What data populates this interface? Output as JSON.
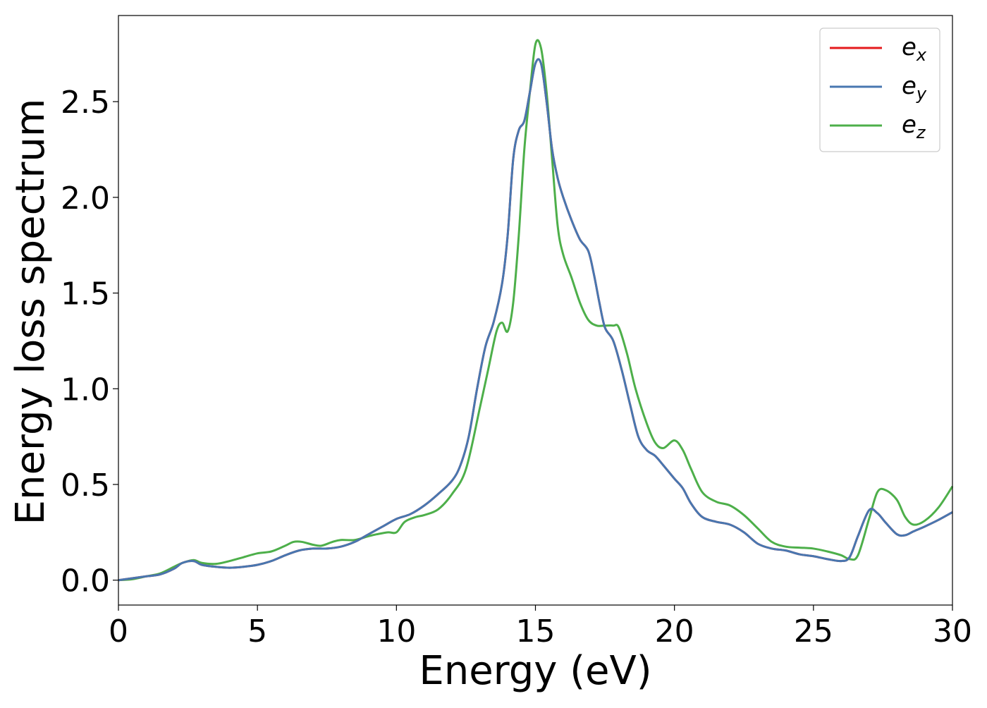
{
  "chart_data": {
    "type": "line",
    "xlabel": "Energy (eV)",
    "ylabel": "Energy loss spectrum",
    "xlim": [
      0,
      30
    ],
    "ylim": [
      -0.13,
      2.95
    ],
    "xticks": [
      0,
      5,
      10,
      15,
      20,
      25,
      30
    ],
    "xtick_labels": [
      "0",
      "5",
      "10",
      "15",
      "20",
      "25",
      "30"
    ],
    "yticks": [
      0.0,
      0.5,
      1.0,
      1.5,
      2.0,
      2.5
    ],
    "ytick_labels": [
      "0.0",
      "0.5",
      "1.0",
      "1.5",
      "2.0",
      "2.5"
    ],
    "grid": false,
    "legend_position": "top-right",
    "series": [
      {
        "name": "e_x",
        "label_base": "e",
        "label_sub": "x",
        "color": "#e41a1c",
        "x": [
          0,
          0.5,
          1,
          1.5,
          2,
          2.3,
          2.7,
          3,
          3.5,
          4,
          4.5,
          5,
          5.5,
          6,
          6.5,
          7,
          7.5,
          8,
          8.5,
          9,
          9.5,
          10,
          10.5,
          11,
          11.5,
          12,
          12.3,
          12.6,
          12.9,
          13.2,
          13.5,
          13.8,
          14,
          14.2,
          14.4,
          14.6,
          14.8,
          15,
          15.2,
          15.4,
          15.6,
          15.8,
          16,
          16.3,
          16.6,
          16.9,
          17.1,
          17.3,
          17.5,
          17.8,
          18.1,
          18.4,
          18.7,
          19,
          19.3,
          19.6,
          20,
          20.3,
          20.6,
          21,
          21.5,
          22,
          22.5,
          23,
          23.5,
          24,
          24.5,
          25,
          25.5,
          26,
          26.3,
          26.6,
          27,
          27.3,
          27.6,
          28,
          28.3,
          28.6,
          29,
          29.5,
          30
        ],
        "y": [
          0,
          0.01,
          0.02,
          0.03,
          0.06,
          0.09,
          0.1,
          0.08,
          0.07,
          0.065,
          0.07,
          0.08,
          0.1,
          0.13,
          0.155,
          0.165,
          0.165,
          0.175,
          0.2,
          0.24,
          0.28,
          0.32,
          0.345,
          0.39,
          0.45,
          0.52,
          0.6,
          0.75,
          1.0,
          1.22,
          1.35,
          1.55,
          1.8,
          2.2,
          2.35,
          2.4,
          2.55,
          2.7,
          2.7,
          2.5,
          2.25,
          2.1,
          2.0,
          1.88,
          1.78,
          1.72,
          1.6,
          1.45,
          1.32,
          1.25,
          1.1,
          0.92,
          0.75,
          0.68,
          0.65,
          0.6,
          0.53,
          0.48,
          0.4,
          0.33,
          0.305,
          0.29,
          0.25,
          0.19,
          0.165,
          0.155,
          0.135,
          0.125,
          0.11,
          0.1,
          0.12,
          0.23,
          0.365,
          0.35,
          0.3,
          0.24,
          0.235,
          0.255,
          0.28,
          0.315,
          0.355
        ]
      },
      {
        "name": "e_y",
        "label_base": "e",
        "label_sub": "y",
        "color": "#4877b0",
        "x": [
          0,
          0.5,
          1,
          1.5,
          2,
          2.3,
          2.7,
          3,
          3.5,
          4,
          4.5,
          5,
          5.5,
          6,
          6.5,
          7,
          7.5,
          8,
          8.5,
          9,
          9.5,
          10,
          10.5,
          11,
          11.5,
          12,
          12.3,
          12.6,
          12.9,
          13.2,
          13.5,
          13.8,
          14,
          14.2,
          14.4,
          14.6,
          14.8,
          15,
          15.2,
          15.4,
          15.6,
          15.8,
          16,
          16.3,
          16.6,
          16.9,
          17.1,
          17.3,
          17.5,
          17.8,
          18.1,
          18.4,
          18.7,
          19,
          19.3,
          19.6,
          20,
          20.3,
          20.6,
          21,
          21.5,
          22,
          22.5,
          23,
          23.5,
          24,
          24.5,
          25,
          25.5,
          26,
          26.3,
          26.6,
          27,
          27.3,
          27.6,
          28,
          28.3,
          28.6,
          29,
          29.5,
          30
        ],
        "y": [
          0,
          0.01,
          0.02,
          0.03,
          0.06,
          0.09,
          0.1,
          0.08,
          0.07,
          0.065,
          0.07,
          0.08,
          0.1,
          0.13,
          0.155,
          0.165,
          0.165,
          0.175,
          0.2,
          0.24,
          0.28,
          0.32,
          0.345,
          0.39,
          0.45,
          0.52,
          0.6,
          0.75,
          1.0,
          1.22,
          1.35,
          1.55,
          1.8,
          2.2,
          2.35,
          2.4,
          2.55,
          2.7,
          2.7,
          2.5,
          2.25,
          2.1,
          2.0,
          1.88,
          1.78,
          1.72,
          1.6,
          1.45,
          1.32,
          1.25,
          1.1,
          0.92,
          0.75,
          0.68,
          0.65,
          0.6,
          0.53,
          0.48,
          0.4,
          0.33,
          0.305,
          0.29,
          0.25,
          0.19,
          0.165,
          0.155,
          0.135,
          0.125,
          0.11,
          0.1,
          0.12,
          0.23,
          0.365,
          0.35,
          0.3,
          0.24,
          0.235,
          0.255,
          0.28,
          0.315,
          0.355
        ]
      },
      {
        "name": "e_z",
        "label_base": "e",
        "label_sub": "z",
        "color": "#4daf4a",
        "x": [
          0,
          0.5,
          1,
          1.5,
          2,
          2.3,
          2.7,
          3,
          3.5,
          4,
          4.5,
          5,
          5.5,
          6,
          6.3,
          6.6,
          7,
          7.3,
          7.7,
          8,
          8.5,
          9,
          9.3,
          9.7,
          10,
          10.3,
          10.7,
          11,
          11.5,
          12,
          12.5,
          13,
          13.3,
          13.6,
          13.8,
          14,
          14.2,
          14.4,
          14.6,
          14.8,
          15,
          15.2,
          15.4,
          15.6,
          15.8,
          16,
          16.3,
          16.6,
          16.9,
          17.2,
          17.5,
          17.8,
          18,
          18.3,
          18.6,
          19,
          19.3,
          19.6,
          20,
          20.3,
          20.6,
          21,
          21.5,
          22,
          22.5,
          23,
          23.5,
          24,
          24.5,
          25,
          25.5,
          26,
          26.3,
          26.6,
          27,
          27.3,
          27.6,
          28,
          28.3,
          28.6,
          29,
          29.5,
          30
        ],
        "y": [
          0,
          0.005,
          0.02,
          0.035,
          0.07,
          0.09,
          0.105,
          0.09,
          0.085,
          0.1,
          0.12,
          0.14,
          0.15,
          0.18,
          0.2,
          0.2,
          0.185,
          0.18,
          0.2,
          0.21,
          0.21,
          0.23,
          0.24,
          0.25,
          0.25,
          0.305,
          0.33,
          0.34,
          0.37,
          0.45,
          0.58,
          0.9,
          1.1,
          1.3,
          1.345,
          1.3,
          1.45,
          1.8,
          2.25,
          2.55,
          2.8,
          2.78,
          2.55,
          2.2,
          1.85,
          1.7,
          1.58,
          1.45,
          1.36,
          1.33,
          1.33,
          1.33,
          1.32,
          1.18,
          1.0,
          0.82,
          0.72,
          0.69,
          0.73,
          0.68,
          0.58,
          0.46,
          0.41,
          0.39,
          0.34,
          0.27,
          0.2,
          0.175,
          0.17,
          0.165,
          0.15,
          0.13,
          0.11,
          0.13,
          0.32,
          0.46,
          0.47,
          0.42,
          0.33,
          0.29,
          0.31,
          0.38,
          0.49
        ]
      }
    ]
  }
}
